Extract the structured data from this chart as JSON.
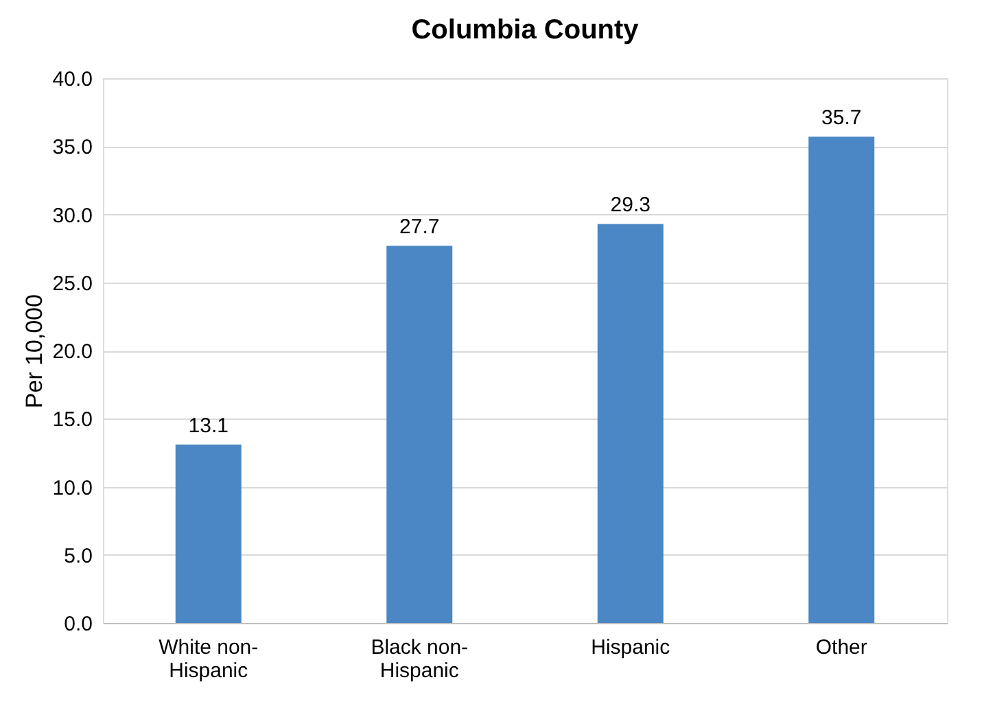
{
  "chart_data": {
    "type": "bar",
    "title": "Columbia  County",
    "ylabel": "Per 10,000",
    "categories": [
      "White non-Hispanic",
      "Black non-Hispanic",
      "Hispanic",
      "Other"
    ],
    "values": [
      13.1,
      27.7,
      29.3,
      35.7
    ],
    "color": "#4a87c4",
    "ylim": [
      0,
      40
    ],
    "yticks": [
      {
        "value": 0,
        "label": "0.0"
      },
      {
        "value": 5,
        "label": "5.0"
      },
      {
        "value": 10,
        "label": "10.0"
      },
      {
        "value": 15,
        "label": "15.0"
      },
      {
        "value": 20,
        "label": "20.0"
      },
      {
        "value": 25,
        "label": "25.0"
      },
      {
        "value": 30,
        "label": "30.0"
      },
      {
        "value": 35,
        "label": "35.0"
      },
      {
        "value": 40,
        "label": "40.0"
      }
    ],
    "grid": "y",
    "data_labels": true
  }
}
